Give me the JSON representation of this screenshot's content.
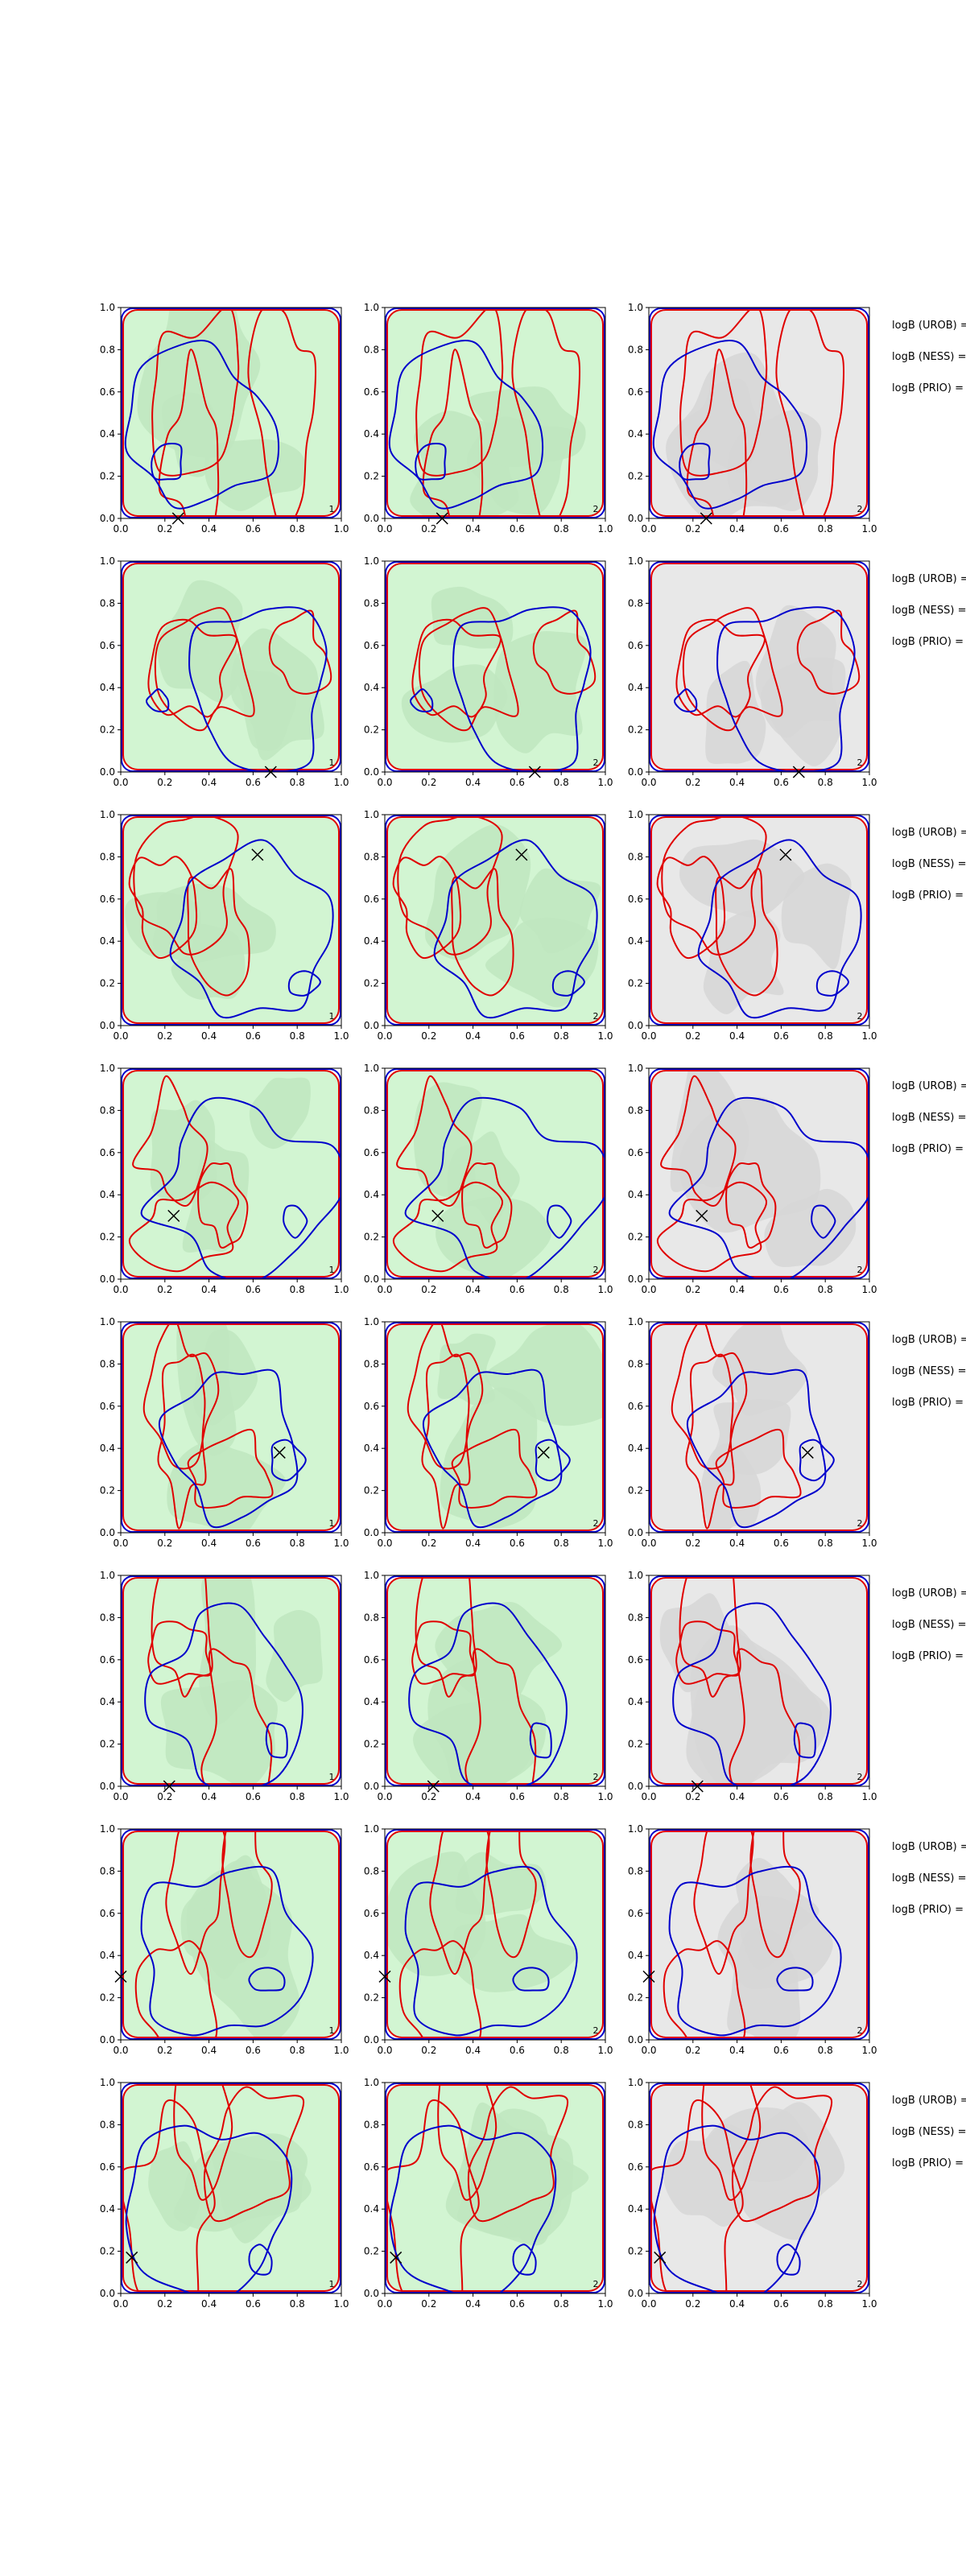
{
  "colors": {
    "green_fill_light": "#d2f5d2",
    "green_fill_mid": "#bfe6bf",
    "gray_fill_light": "#e8e8e8",
    "gray_fill_mid": "#d6d6d6",
    "contour_red": "#e00000",
    "contour_blue": "#0000cc",
    "marker": "#000000"
  },
  "labels": {
    "urob": "logB (UROB) =",
    "ness": "logB (NESS) =",
    "prio": "logB (PRIO) ="
  },
  "chart_data": {
    "type": "contour",
    "layout": {
      "rows": 8,
      "cols": 3
    },
    "xlim": [
      0,
      1
    ],
    "ylim": [
      0,
      1
    ],
    "xticks": [
      "0.0",
      "0.2",
      "0.4",
      "0.6",
      "0.8",
      "1.0"
    ],
    "yticks": [
      "0.0",
      "0.2",
      "0.4",
      "0.6",
      "0.8",
      "1.0"
    ],
    "grid": false,
    "panel_fill_by_column": [
      "green",
      "green",
      "gray"
    ],
    "panel_corner_label_by_column": [
      "1",
      "2",
      "2"
    ],
    "marker_points": [
      {
        "row": 1,
        "x": 0.26,
        "y": 0.0
      },
      {
        "row": 2,
        "x": 0.68,
        "y": 0.0
      },
      {
        "row": 3,
        "x": 0.62,
        "y": 0.81
      },
      {
        "row": 4,
        "x": 0.24,
        "y": 0.3
      },
      {
        "row": 5,
        "x": 0.72,
        "y": 0.38
      },
      {
        "row": 6,
        "x": 0.22,
        "y": 0.0
      },
      {
        "row": 7,
        "x": 0.0,
        "y": 0.3
      },
      {
        "row": 8,
        "x": 0.05,
        "y": 0.17
      }
    ]
  }
}
